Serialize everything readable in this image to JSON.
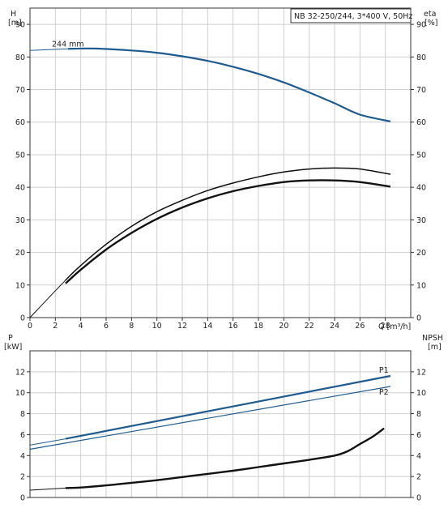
{
  "chart_data": [
    {
      "type": "line",
      "title": "NB 32-250/244, 3*400 V, 50Hz",
      "y_left_label": [
        "H",
        "[m]"
      ],
      "y_right_label": [
        "eta",
        "[%]"
      ],
      "x_label": "Q [m³/h]",
      "xlim": [
        0,
        30
      ],
      "x_ticks": [
        0,
        2,
        4,
        6,
        8,
        10,
        12,
        14,
        16,
        18,
        20,
        22,
        24,
        26,
        28
      ],
      "ylim_left": [
        0,
        95
      ],
      "ylim_right": [
        0,
        95
      ],
      "y_ticks": [
        0,
        10,
        20,
        30,
        40,
        50,
        60,
        70,
        80,
        90
      ],
      "annotation": "244 mm",
      "grid": true,
      "series": [
        {
          "role": "head",
          "axis": "left",
          "color": "#1f5b8f",
          "x": [
            3,
            5,
            8,
            10,
            12,
            14,
            16,
            18,
            20,
            22,
            24,
            26,
            28.4
          ],
          "y": [
            82.5,
            82.6,
            82,
            81.3,
            80.2,
            78.8,
            77,
            74.8,
            72.2,
            69.1,
            65.8,
            62.3,
            60.2
          ]
        },
        {
          "role": "head-extension",
          "axis": "left",
          "color": "#1f5b8f",
          "x": [
            0,
            3
          ],
          "y": [
            82,
            82.5
          ]
        },
        {
          "role": "efficiency-upper",
          "axis": "right",
          "color": "#111111",
          "x": [
            0,
            2.8,
            4,
            6,
            8,
            10,
            12,
            14,
            16,
            18,
            20,
            22,
            24,
            26,
            28.4
          ],
          "y": [
            0,
            11.5,
            16,
            22.5,
            28,
            32.5,
            36,
            39,
            41.3,
            43.2,
            44.7,
            45.6,
            45.9,
            45.6,
            44
          ],
          "thin_segment_to": 2.8
        },
        {
          "role": "efficiency-lower",
          "axis": "right",
          "color": "#111111",
          "x": [
            2.8,
            4,
            6,
            8,
            10,
            12,
            14,
            16,
            18,
            20,
            22,
            24,
            26,
            28.4
          ],
          "y": [
            10.5,
            14.7,
            20.9,
            26,
            30.3,
            33.8,
            36.6,
            38.8,
            40.4,
            41.6,
            42.1,
            42.1,
            41.6,
            40.2
          ]
        }
      ]
    },
    {
      "type": "line",
      "y_left_label": [
        "P",
        "[kW]"
      ],
      "y_right_label": [
        "NPSH",
        "[m]"
      ],
      "xlim": [
        0,
        30
      ],
      "ylim_left": [
        0,
        14
      ],
      "ylim_right": [
        0,
        14
      ],
      "y_ticks": [
        0,
        2,
        4,
        6,
        8,
        10,
        12
      ],
      "grid": true,
      "series": [
        {
          "name": "P1",
          "axis": "left",
          "color": "#1f5b8f",
          "x": [
            2.8,
            28.4
          ],
          "y": [
            5.6,
            11.6
          ]
        },
        {
          "role": "P1-extension",
          "axis": "left",
          "color": "#1f5b8f",
          "x": [
            0,
            2.8
          ],
          "y": [
            5.0,
            5.6
          ]
        },
        {
          "name": "P2",
          "axis": "left",
          "color": "#1f5b8f",
          "x": [
            0,
            28.4
          ],
          "y": [
            4.6,
            10.6
          ]
        },
        {
          "role": "NPSH",
          "axis": "right",
          "color": "#111111",
          "x": [
            2.8,
            4,
            6,
            8,
            10,
            12,
            14,
            16,
            18,
            20,
            22,
            24,
            25,
            26,
            27,
            27.9
          ],
          "y": [
            0.9,
            0.95,
            1.15,
            1.4,
            1.65,
            1.95,
            2.25,
            2.55,
            2.9,
            3.25,
            3.6,
            4.0,
            4.4,
            5.1,
            5.8,
            6.6
          ]
        },
        {
          "role": "NPSH-extension",
          "axis": "right",
          "color": "#111111",
          "x": [
            0,
            2.8
          ],
          "y": [
            0.7,
            0.9
          ]
        }
      ]
    }
  ]
}
